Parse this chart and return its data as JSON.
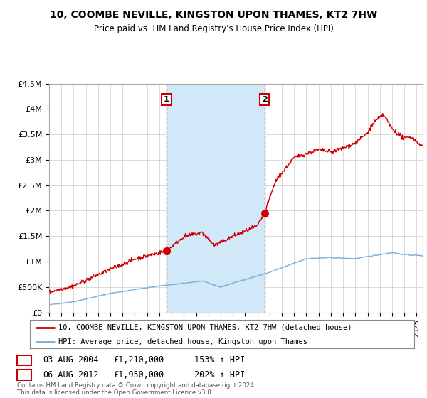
{
  "title": "10, COOMBE NEVILLE, KINGSTON UPON THAMES, KT2 7HW",
  "subtitle": "Price paid vs. HM Land Registry's House Price Index (HPI)",
  "legend_line1": "10, COOMBE NEVILLE, KINGSTON UPON THAMES, KT2 7HW (detached house)",
  "legend_line2": "HPI: Average price, detached house, Kingston upon Thames",
  "annotation1_date": "03-AUG-2004",
  "annotation1_price": "£1,210,000",
  "annotation1_hpi": "153% ↑ HPI",
  "annotation2_date": "06-AUG-2012",
  "annotation2_price": "£1,950,000",
  "annotation2_hpi": "202% ↑ HPI",
  "footnote": "Contains HM Land Registry data © Crown copyright and database right 2024.\nThis data is licensed under the Open Government Licence v3.0.",
  "hpi_color": "#7aaddc",
  "price_color": "#cc0000",
  "vline_color": "#cc0000",
  "shade_color": "#d0e8f8",
  "background_color": "#ffffff",
  "ylim": [
    0,
    4500000
  ],
  "yticks": [
    0,
    500000,
    1000000,
    1500000,
    2000000,
    2500000,
    3000000,
    3500000,
    4000000,
    4500000
  ],
  "ytick_labels": [
    "£0",
    "£500K",
    "£1M",
    "£1.5M",
    "£2M",
    "£2.5M",
    "£3M",
    "£3.5M",
    "£4M",
    "£4.5M"
  ],
  "sale1_x": 2004.583,
  "sale1_y": 1210000,
  "sale2_x": 2012.583,
  "sale2_y": 1950000,
  "xmin": 1995,
  "xmax": 2025.5
}
